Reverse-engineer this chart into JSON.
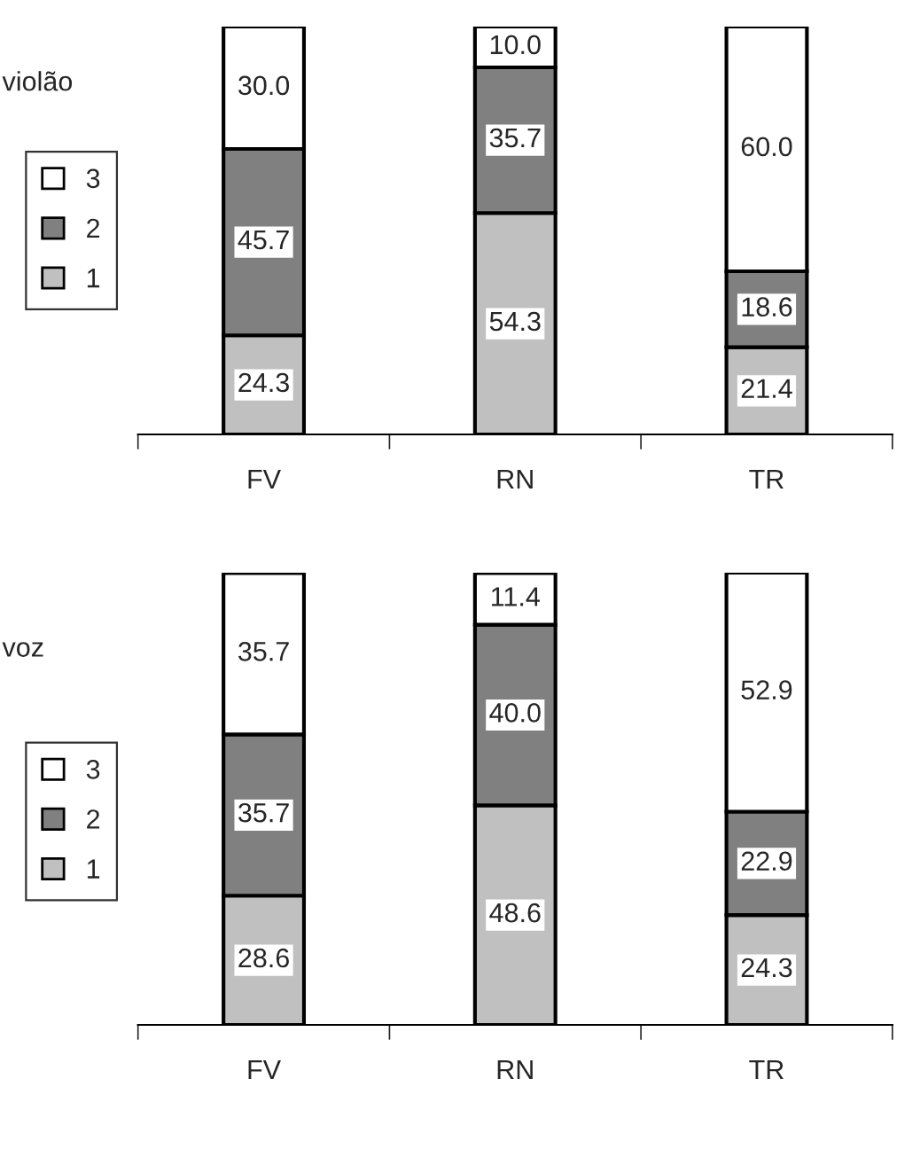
{
  "chart_data": [
    {
      "type": "bar",
      "stacked": true,
      "legend_title": "violão",
      "legend": "left",
      "data_labels": true,
      "categories": [
        "FV",
        "RN",
        "TR"
      ],
      "series": [
        {
          "name": "1",
          "color": "#c0c0c0",
          "values": [
            24.3,
            54.3,
            21.4
          ]
        },
        {
          "name": "2",
          "color": "#808080",
          "values": [
            45.7,
            35.7,
            18.6
          ]
        },
        {
          "name": "3",
          "color": "#ffffff",
          "values": [
            30.0,
            10.0,
            60.0
          ],
          "value_labels": [
            "30.0",
            "10.0",
            "60.0"
          ]
        }
      ]
    },
    {
      "type": "bar",
      "stacked": true,
      "legend_title": "voz",
      "legend": "left",
      "data_labels": true,
      "categories": [
        "FV",
        "RN",
        "TR"
      ],
      "series": [
        {
          "name": "1",
          "color": "#c0c0c0",
          "values": [
            28.6,
            48.6,
            24.3
          ]
        },
        {
          "name": "2",
          "color": "#808080",
          "values": [
            35.7,
            40.0,
            22.9
          ],
          "value_labels": [
            "35.7",
            "40.0",
            "22.9"
          ]
        },
        {
          "name": "3",
          "color": "#ffffff",
          "values": [
            35.7,
            11.4,
            52.9
          ]
        }
      ]
    }
  ]
}
